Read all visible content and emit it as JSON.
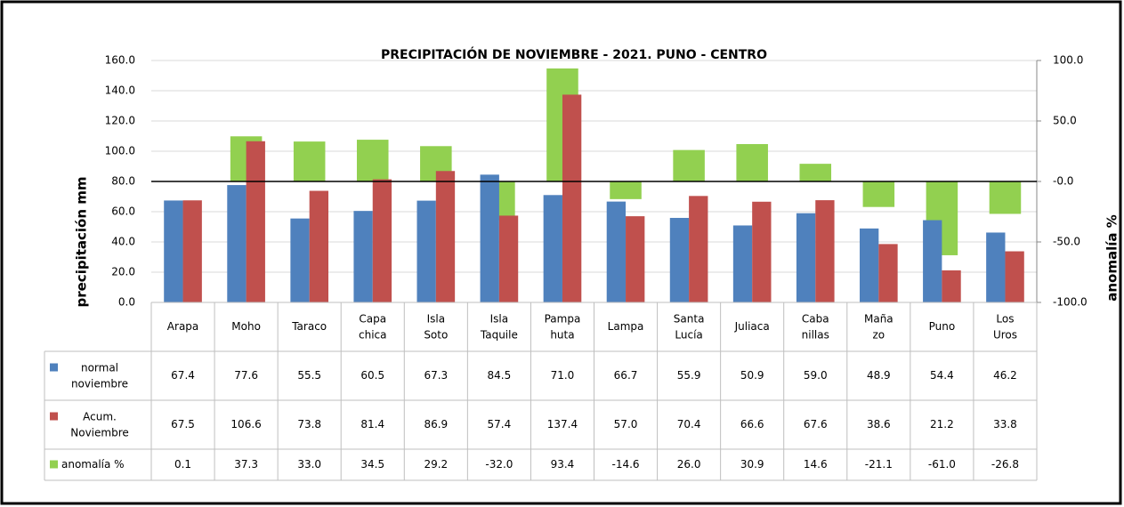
{
  "chart_data": {
    "type": "bar",
    "title": "PRECIPITACIÓN DE NOVIEMBRE - 2021. PUNO - CENTRO",
    "y_label": "precipitación mm",
    "y2_label": "anomalía %",
    "categories": [
      "Arapa",
      "Moho",
      "Taraco",
      "Capa chica",
      "Isla Soto",
      "Isla Taquile",
      "Pampa huta",
      "Lampa",
      "Santa Lucía",
      "Juliaca",
      "Caba nillas",
      "Maña zo",
      "Puno",
      "Los Uros"
    ],
    "series": [
      {
        "name": "normal noviembre",
        "color": "#4f81bd",
        "values": [
          67.4,
          77.6,
          55.5,
          60.5,
          67.3,
          84.5,
          71.0,
          66.7,
          55.9,
          50.9,
          59.0,
          48.9,
          54.4,
          46.2
        ],
        "value_labels": [
          "67.4",
          "77.6",
          "55.5",
          "60.5",
          "67.3",
          "84.5",
          "71.0",
          "66.7",
          "55.9",
          "50.9",
          "59.0",
          "48.9",
          "54.4",
          "46.2"
        ]
      },
      {
        "name": "Acum. Noviembre",
        "color": "#c0504d",
        "values": [
          67.5,
          106.6,
          73.8,
          81.4,
          86.9,
          57.4,
          137.4,
          57.0,
          70.4,
          66.6,
          67.6,
          38.6,
          21.2,
          33.8
        ],
        "value_labels": [
          "67.5",
          "106.6",
          "73.8",
          "81.4",
          "86.9",
          "57.4",
          "137.4",
          "57.0",
          "70.4",
          "66.6",
          "67.6",
          "38.6",
          "21.2",
          "33.8"
        ]
      },
      {
        "name": "anomalía %",
        "color": "#92d050",
        "axis": "y2",
        "values": [
          0.1,
          37.3,
          33.0,
          34.5,
          29.2,
          -32.0,
          93.4,
          -14.6,
          26.0,
          30.9,
          14.6,
          -21.1,
          -61.0,
          -26.8
        ],
        "value_labels": [
          "0.1",
          "37.3",
          "33.0",
          "34.5",
          "29.2",
          "-32.0",
          "93.4",
          "-14.6",
          "26.0",
          "30.9",
          "14.6",
          "-21.1",
          "-61.0",
          "-26.8"
        ]
      }
    ],
    "ylim": [
      0,
      160
    ],
    "yticks": [
      {
        "value": 0,
        "label": "0.0"
      },
      {
        "value": 20,
        "label": "20.0"
      },
      {
        "value": 40,
        "label": "40.0"
      },
      {
        "value": 60,
        "label": "60.0"
      },
      {
        "value": 80,
        "label": "80.0"
      },
      {
        "value": 100,
        "label": "100.0"
      },
      {
        "value": 120,
        "label": "120.0"
      },
      {
        "value": 140,
        "label": "140.0"
      },
      {
        "value": 160,
        "label": "160.0"
      }
    ],
    "y2lim": [
      -100,
      100
    ],
    "y2ticks": [
      {
        "value": -100,
        "label": "-100.0"
      },
      {
        "value": -50,
        "label": "-50.0"
      },
      {
        "value": 0,
        "label": "-0.0"
      },
      {
        "value": 50,
        "label": "50.0"
      },
      {
        "value": 100,
        "label": "100.0"
      }
    ],
    "grid": true
  }
}
